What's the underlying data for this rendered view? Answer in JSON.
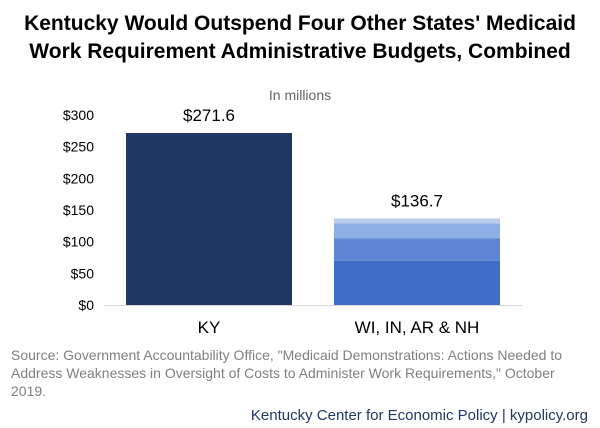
{
  "title_lines": [
    "Kentucky Would Outspend Four Other States' Medicaid",
    "Work Requirement Administrative Budgets, Combined"
  ],
  "subtitle": "In millions",
  "source_text": "Source: Government Accountability Office, \"Medicaid Demonstrations: Actions Needed to Address Weaknesses in Oversight of Costs to Administer Work Requirements,\" October 2019.",
  "credit_text": "Kentucky Center for Economic Policy | kypolicy.org",
  "colors": {
    "ky_bar": "#1f3864",
    "segment_1": "#3f6cc6",
    "segment_2": "#5f86d4",
    "segment_3": "#8eaee6",
    "segment_4": "#bccdf0",
    "axis": "#d9d9d9"
  },
  "chart_data": {
    "type": "bar",
    "title": "Kentucky Would Outspend Four Other States' Medicaid Work Requirement Administrative Budgets, Combined",
    "subtitle": "In millions",
    "categories": [
      "KY",
      "WI, IN, AR & NH"
    ],
    "totals": [
      271.6,
      136.7
    ],
    "total_labels": [
      "$271.6",
      "$136.7"
    ],
    "stacks": [
      [
        271.6
      ],
      [
        70.0,
        35.0,
        24.0,
        7.7
      ]
    ],
    "ylim": [
      0,
      300
    ],
    "yticks": [
      0,
      50,
      100,
      150,
      200,
      250,
      300
    ],
    "ytick_labels": [
      "$0",
      "$50",
      "$100",
      "$150",
      "$200",
      "$250",
      "$300"
    ],
    "grid": false,
    "legend": "none"
  }
}
